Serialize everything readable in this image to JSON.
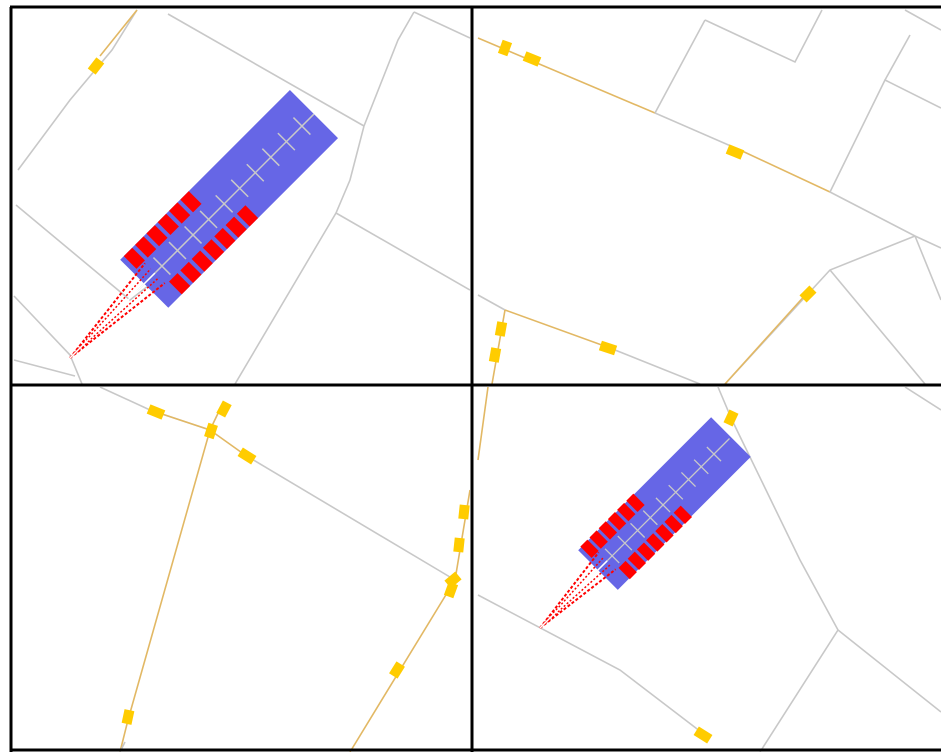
{
  "app": {
    "title": ""
  },
  "layout": {
    "rows": 2,
    "cols": 2
  },
  "colors": {
    "background": "#ffffff",
    "grid_line": "#000000",
    "road_gray": "#c8c8c8",
    "road_yellow": "#e2b864",
    "vehicle_yellow": "#ffcc00",
    "intersection_zone": "#6666e6",
    "vehicle_red": "#ff0000",
    "lane_marking": "#c9c9c9"
  },
  "panels": [
    {
      "id": "top-left",
      "name": "map-view-top-left",
      "has_intersection": true
    },
    {
      "id": "top-right",
      "name": "map-view-top-right",
      "has_intersection": false
    },
    {
      "id": "bottom-left",
      "name": "map-view-bottom-left",
      "has_intersection": false
    },
    {
      "id": "bottom-right",
      "name": "map-view-bottom-right",
      "has_intersection": true
    }
  ],
  "icons": {
    "vehicle": "vehicle-marker-icon",
    "queued_vehicle": "queued-vehicle-icon"
  }
}
